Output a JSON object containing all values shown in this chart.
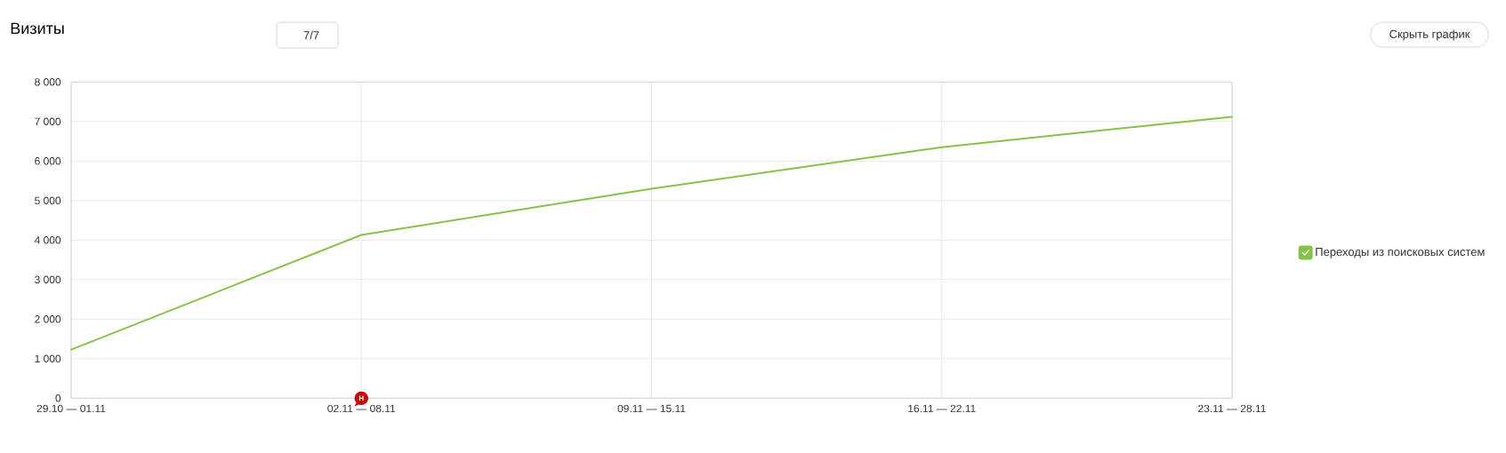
{
  "chart_data": {
    "type": "line",
    "title": "Визиты",
    "categories": [
      "29.10 — 01.11",
      "02.11 — 08.11",
      "09.11 — 15.11",
      "16.11 — 22.11",
      "23.11 — 28.11"
    ],
    "series": [
      {
        "name": "Переходы из поисковых систем",
        "color": "#85c248",
        "values": [
          1230,
          4130,
          5300,
          6350,
          7120
        ]
      }
    ],
    "ylim": [
      0,
      8000
    ],
    "yticks": [
      0,
      {
        "value": 1000,
        "label": "1 000"
      },
      {
        "value": 2000,
        "label": "2 000"
      },
      {
        "value": 3000,
        "label": "3 000"
      },
      {
        "value": 4000,
        "label": "4 000"
      },
      {
        "value": 5000,
        "label": "5 000"
      },
      {
        "value": 6000,
        "label": "6 000"
      },
      {
        "value": 7000,
        "label": "7 000"
      },
      {
        "value": 8000,
        "label": "8 000"
      }
    ],
    "grid": true,
    "legend": "right",
    "annotations": [
      "7/7",
      "Скрыть график",
      {
        "text": "Н",
        "x": "02.11 — 08.11",
        "y": 0
      }
    ]
  }
}
